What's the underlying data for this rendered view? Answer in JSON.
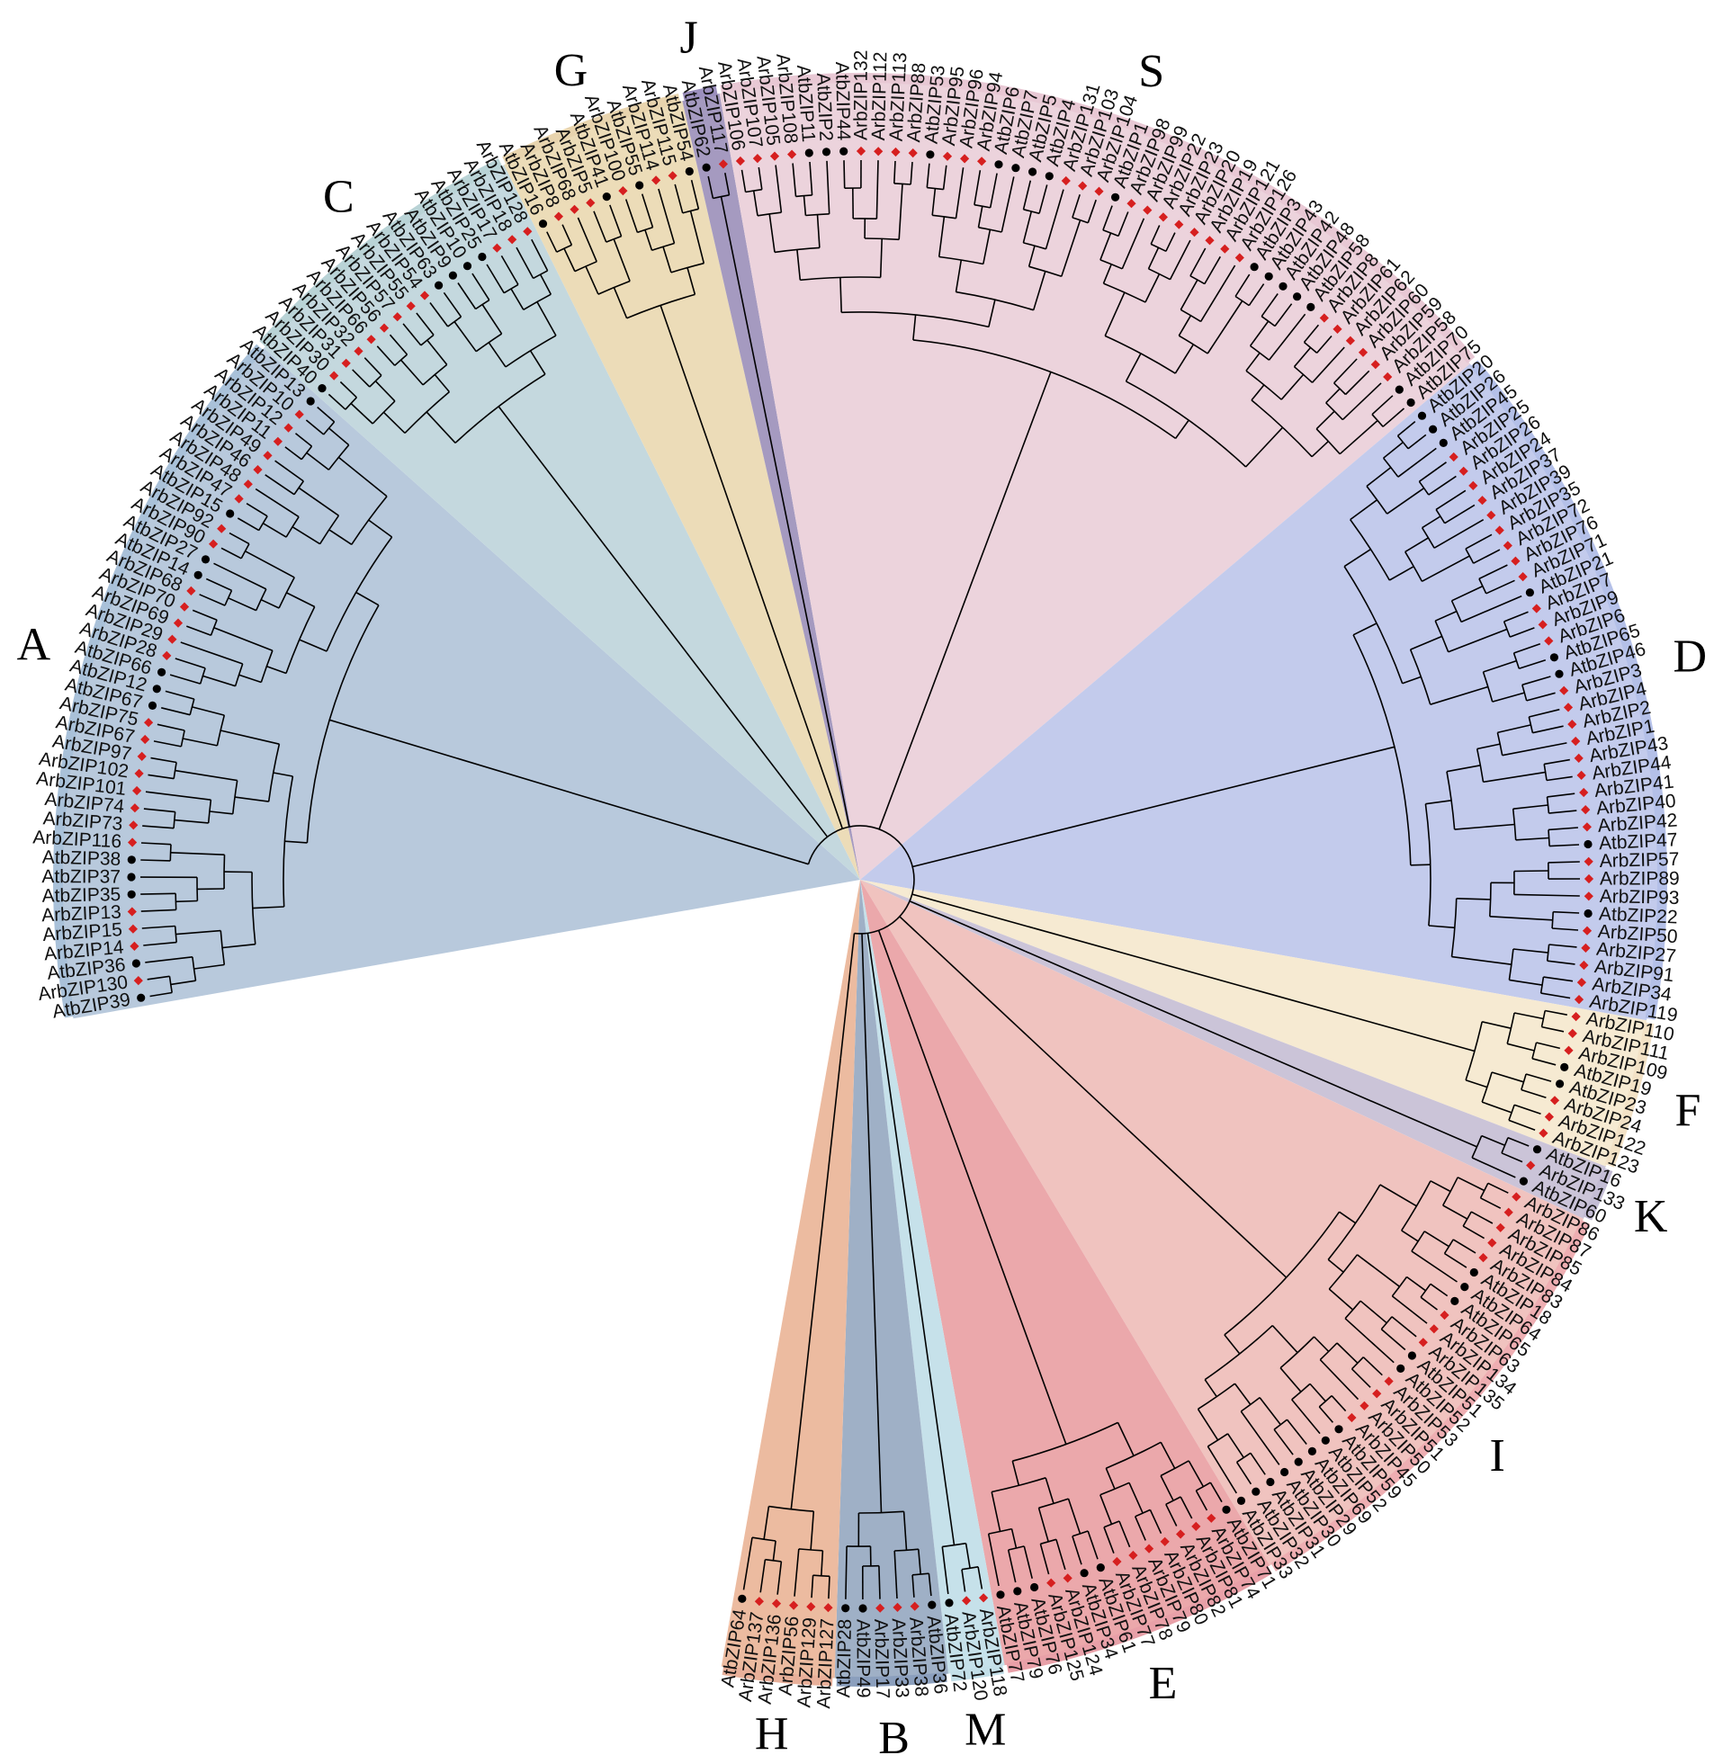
{
  "tree": {
    "clades": [
      {
        "id": "A",
        "label": "A",
        "sector_color": "#b8c9dc",
        "ring_color": "#a9c1d9",
        "leaves": [
          "AtbZIP39",
          "ArbZIP130",
          "AtbZIP36",
          "ArbZIP14",
          "ArbZIP15",
          "ArbZIP13",
          "AtbZIP35",
          "AtbZIP37",
          "AtbZIP38",
          "ArbZIP116",
          "ArbZIP73",
          "ArbZIP74",
          "ArbZIP101",
          "ArbZIP102",
          "ArbZIP97",
          "ArbZIP67",
          "ArbZIP75",
          "AtbZIP67",
          "AtbZIP12",
          "AtbZIP66",
          "ArbZIP28",
          "ArbZIP29",
          "ArbZIP69",
          "ArbZIP70",
          "ArbZIP68",
          "AtbZIP14",
          "AtbZIP27",
          "ArbZIP90",
          "ArbZIP92",
          "AtbZIP15",
          "ArbZIP47",
          "ArbZIP48",
          "ArbZIP46",
          "ArbZIP49",
          "ArbZIP11",
          "ArbZIP12",
          "ArbZIP10",
          "AtbZIP13"
        ]
      },
      {
        "id": "C",
        "label": "C",
        "sector_color": "#c4d8de",
        "ring_color": "#b9d3d6",
        "leaves": [
          "AtbZIP40",
          "ArbZIP30",
          "ArbZIP31",
          "ArbZIP32",
          "ArbZIP66",
          "ArbZIP56",
          "ArbZIP57",
          "ArbZIP55",
          "ArbZIP54",
          "AtbZIP63",
          "AtbZIP9",
          "AtbZIP10",
          "AtbZIP25",
          "ArbZIP17",
          "ArbZIP18",
          "ArbZIP128"
        ]
      },
      {
        "id": "G",
        "label": "G",
        "sector_color": "#ecdcb8",
        "ring_color": "#e8d4ae",
        "leaves": [
          "AtbZIP16",
          "ArbZIP8",
          "ArbZIP68",
          "ArbZIP5",
          "AtbZIP41",
          "ArbZIP100",
          "AtbZIP55",
          "ArbZIP114",
          "ArbZIP115",
          "AtbZIP54"
        ]
      },
      {
        "id": "J",
        "label": "J",
        "sector_color": "#a59ac0",
        "ring_color": "#9b8fbd",
        "leaves": [
          "AtbZIP62",
          "ArbZIP117"
        ]
      },
      {
        "id": "S",
        "label": "S",
        "sector_color": "#ecd3dc",
        "ring_color": "#e8c8d4",
        "leaves": [
          "ArbZIP106",
          "ArbZIP107",
          "ArbZIP105",
          "ArbZIP108",
          "AtbZIP11",
          "AtbZIP2",
          "AtbZIP44",
          "ArbZIP132",
          "ArbZIP112",
          "ArbZIP113",
          "ArbZIP88",
          "AtbZIP53",
          "ArbZIP95",
          "ArbZIP96",
          "ArbZIP94",
          "AtbZIP6",
          "AtbZIP7",
          "AtbZIP5",
          "AtbZIP4",
          "ArbZIP131",
          "ArbZIP103",
          "ArbZIP104",
          "AtbZIP1",
          "ArbZIP98",
          "ArbZIP99",
          "ArbZIP22",
          "ArbZIP23",
          "ArbZIP20",
          "ArbZIP19",
          "ArbZIP121",
          "ArbZIP126",
          "AtbZIP3",
          "AtbZIP43",
          "AtbZIP42",
          "AtbZIP48",
          "AtbZIP58",
          "ArbZIP8",
          "ArbZIP61",
          "ArbZIP62",
          "ArbZIP60",
          "ArbZIP59",
          "ArbZIP58",
          "AtbZIP70",
          "AtbZIP75"
        ]
      },
      {
        "id": "D",
        "label": "D",
        "sector_color": "#c3cbec",
        "ring_color": "#b4c0e8",
        "leaves": [
          "AtbZIP20",
          "AtbZIP26",
          "AtbZIP45",
          "ArbZIP25",
          "ArbZIP26",
          "ArbZIP24",
          "ArbZIP37",
          "ArbZIP39",
          "ArbZIP35",
          "ArbZIP72",
          "ArbZIP76",
          "ArbZIP71",
          "AtbZIP21",
          "ArbZIP7",
          "ArbZIP9",
          "ArbZIP6",
          "AtbZIP65",
          "AtbZIP46",
          "ArbZIP3",
          "ArbZIP4",
          "ArbZIP2",
          "ArbZIP1",
          "ArbZIP43",
          "ArbZIP44",
          "ArbZIP41",
          "ArbZIP40",
          "ArbZIP42",
          "AtbZIP47",
          "ArbZIP57",
          "ArbZIP89",
          "ArbZIP93",
          "AtbZIP22",
          "ArbZIP50",
          "ArbZIP27",
          "ArbZIP91",
          "ArbZIP34",
          "ArbZIP119"
        ]
      },
      {
        "id": "F",
        "label": "F",
        "sector_color": "#f6ead2",
        "ring_color": "#f3e2c6",
        "leaves": [
          "ArbZIP110",
          "ArbZIP111",
          "ArbZIP109",
          "AtbZIP19",
          "AtbZIP23",
          "ArbZIP24",
          "ArbZIP122",
          "ArbZIP123"
        ]
      },
      {
        "id": "K",
        "label": "K",
        "sector_color": "#cbc4d8",
        "ring_color": "#c3bcd4",
        "leaves": [
          "AtbZIP16",
          "ArbZIP133",
          "AtbZIP60"
        ]
      },
      {
        "id": "I",
        "label": "I",
        "sector_color": "#f0c3bf",
        "ring_color": "#eeaeb2",
        "leaves": [
          "ArbZIP86",
          "ArbZIP87",
          "ArbZIP85",
          "ArbZIP84",
          "ArbZIP83",
          "AtbZIP18",
          "AtbZIP64",
          "AtbZIP65",
          "ArbZIP63",
          "ArbZIP134",
          "ArbZIP135",
          "AtbZIP51",
          "AtbZIP52",
          "ArbZIP53",
          "ArbZIP51",
          "ArbZIP50",
          "ArbZIP45",
          "AtbZIP59",
          "AtbZIP52",
          "AtbZIP69",
          "AtbZIP29",
          "AtbZIP30",
          "AtbZIP31",
          "AtbZIP32",
          "AtbZIP33"
        ]
      },
      {
        "id": "E",
        "label": "E",
        "sector_color": "#eba8ab",
        "ring_color": "#e8a0a8",
        "leaves": [
          "AtbZIP71",
          "ArbZIP74",
          "ArbZIP81",
          "ArbZIP82",
          "ArbZIP80",
          "ArbZIP79",
          "ArbZIP78",
          "ArbZIP77",
          "AtbZIP61",
          "AtbZIP34",
          "ArbZIP124",
          "ArbZIP125",
          "AtbZIP76",
          "AtbZIP79",
          "AtbZIP77"
        ]
      },
      {
        "id": "M",
        "label": "M",
        "sector_color": "#c6e1ea",
        "ring_color": "#c3dfe8",
        "leaves": [
          "ArbZIP118",
          "ArbZIP120",
          "AtbZIP72"
        ]
      },
      {
        "id": "B",
        "label": "B",
        "sector_color": "#9fb0c6",
        "ring_color": "#8b9fbd",
        "leaves": [
          "AtbZIP36",
          "ArbZIP38",
          "ArbZIP33",
          "ArbZIP17",
          "AtbZIP49",
          "AtbZIP28"
        ]
      },
      {
        "id": "H",
        "label": "H",
        "sector_color": "#ecbba0",
        "ring_color": "#e8b09a",
        "leaves": [
          "ArbZIP127",
          "ArbZIP129",
          "ArbZIP56",
          "ArbZIP136",
          "ArbZIP137",
          "AtbZIP64"
        ]
      }
    ]
  },
  "marker_colors": {
    "arabidopsis": "#000000",
    "other": "#d61f1f"
  },
  "line_color": "#000000"
}
